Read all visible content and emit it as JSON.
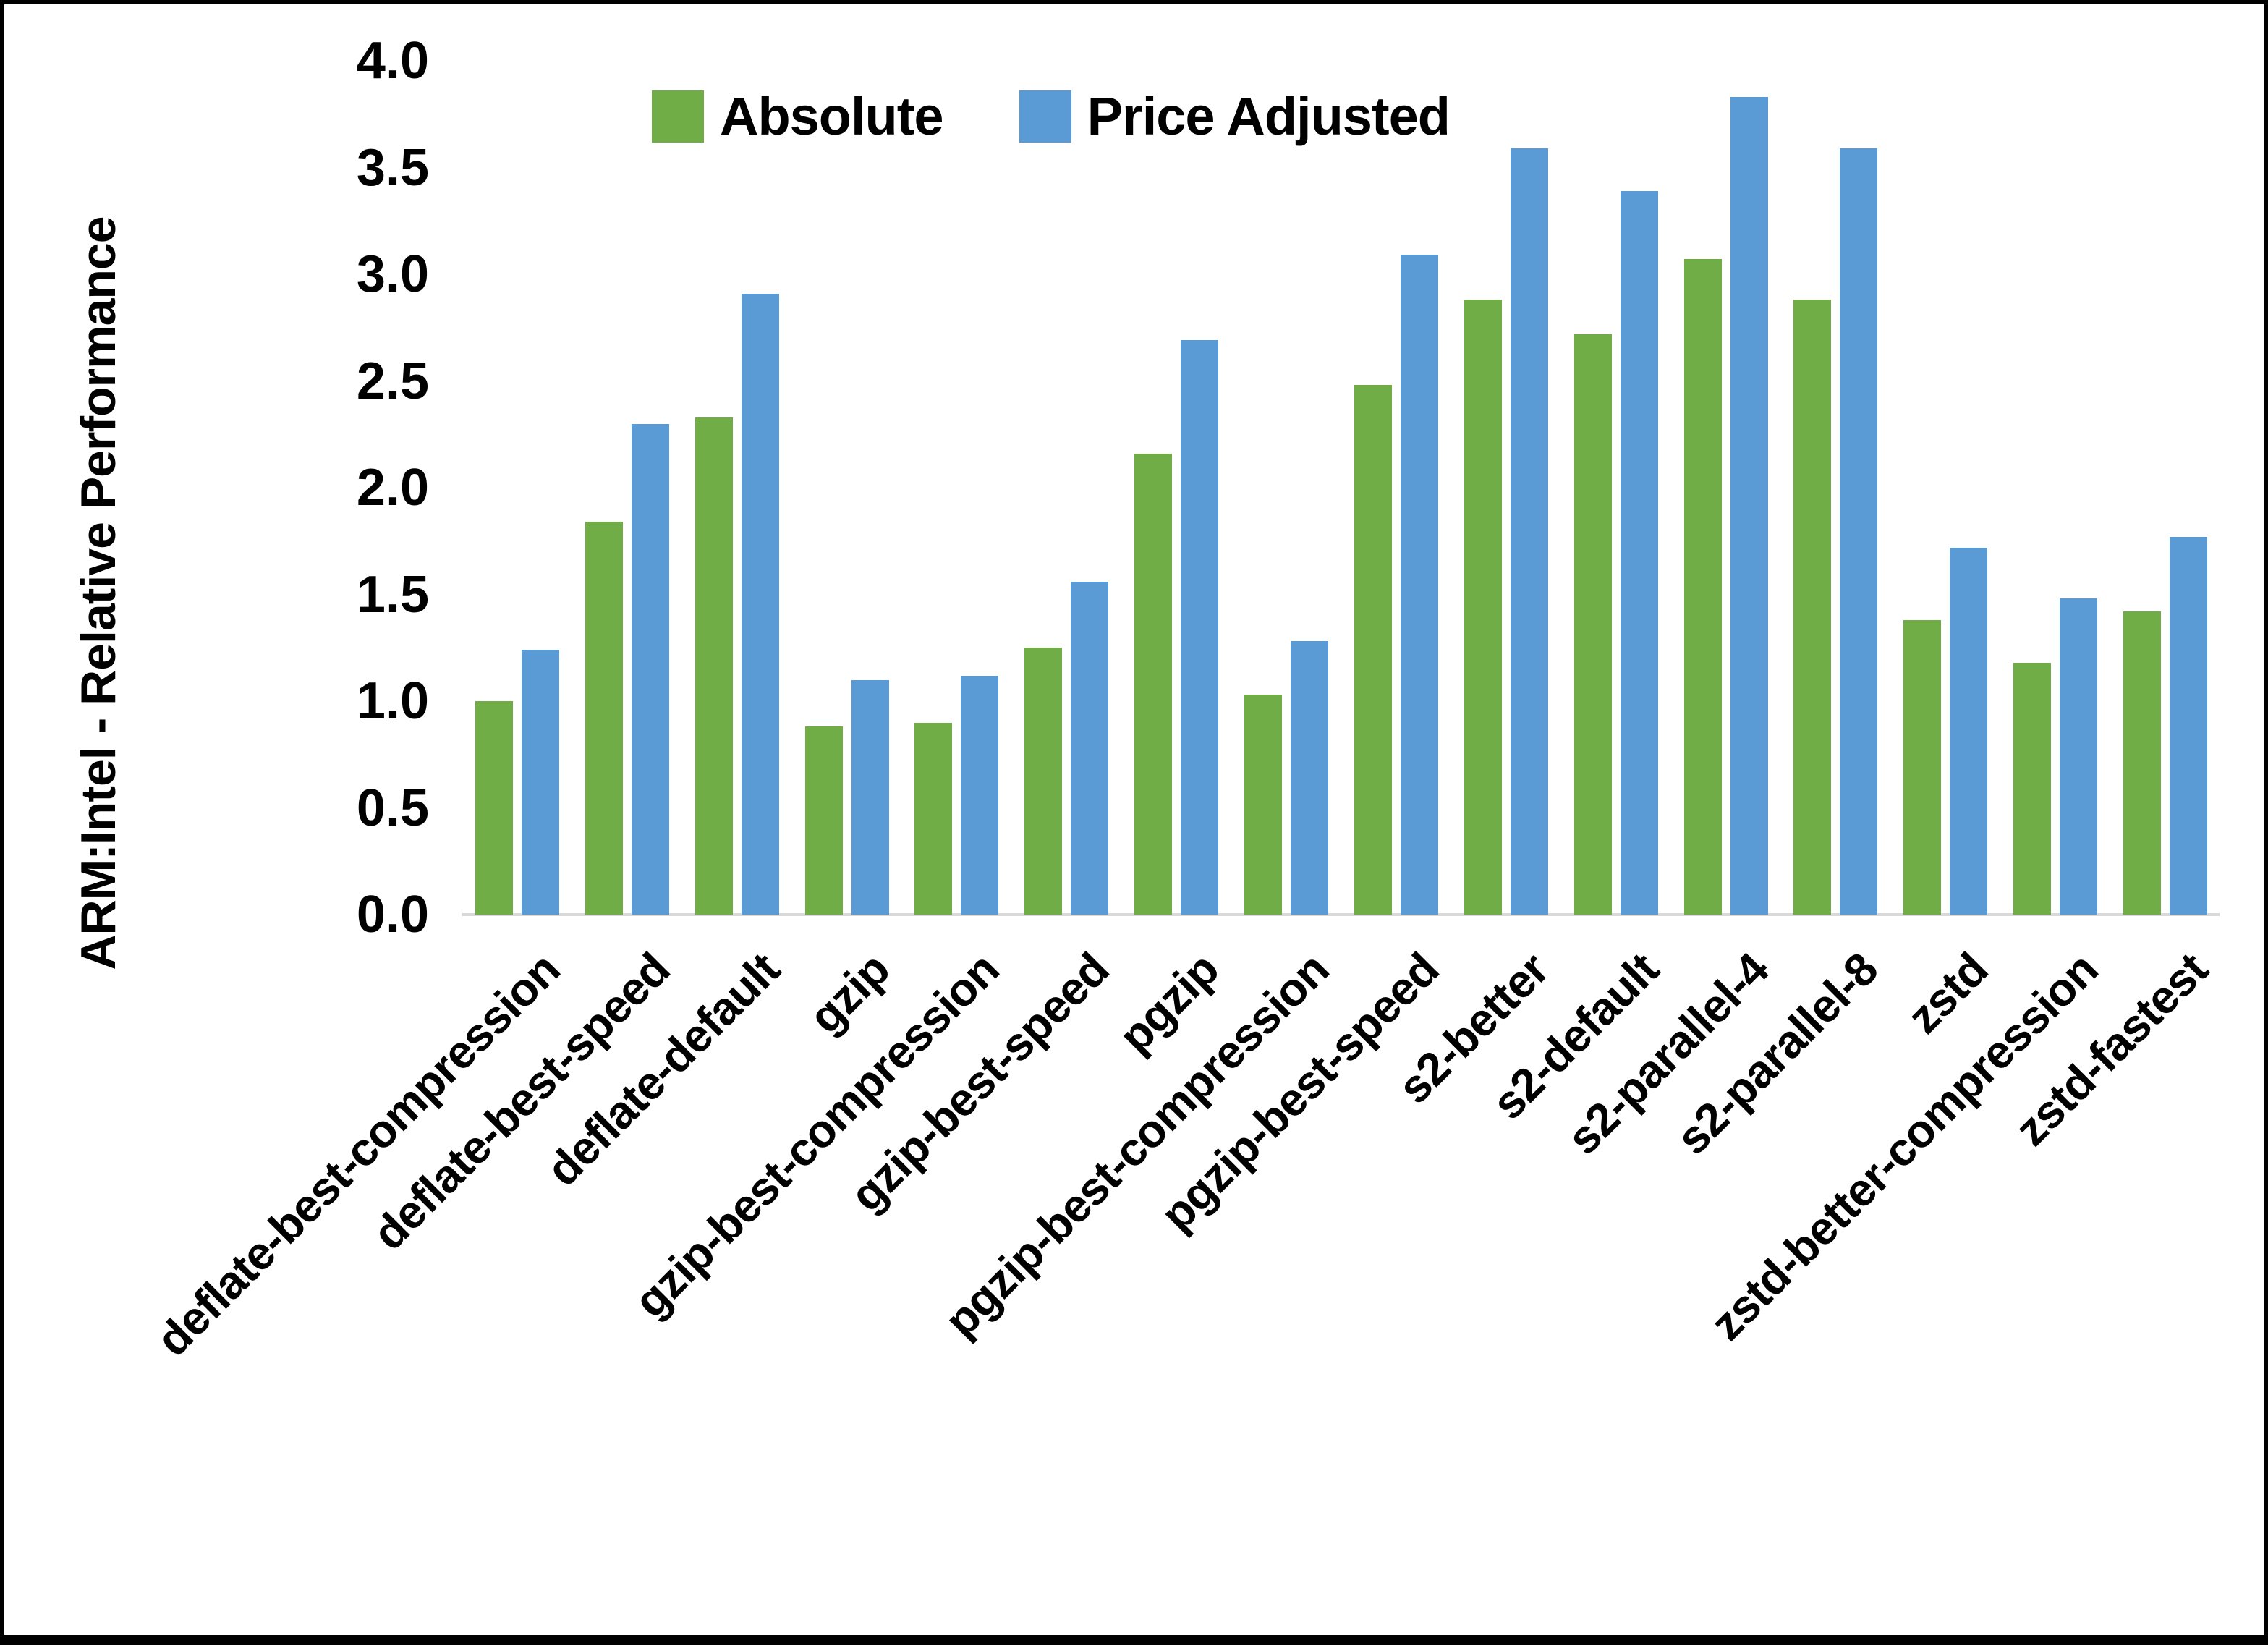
{
  "chart_data": {
    "type": "bar",
    "title": "",
    "xlabel": "",
    "ylabel": "ARM:Intel - Relative Performance",
    "ylim": [
      0.0,
      4.0
    ],
    "ytick_step": 0.5,
    "ytick_labels": [
      "0.0",
      "0.5",
      "1.0",
      "1.5",
      "2.0",
      "2.5",
      "3.0",
      "3.5",
      "4.0"
    ],
    "grid": false,
    "legend_position": "top-center",
    "axis_line_color": "#d9d9d9",
    "categories": [
      "deflate-best-compression",
      "deflate-best-speed",
      "deflate-default",
      "gzip",
      "gzip-best-compression",
      "gzip-best-speed",
      "pgzip",
      "pgzip-best-compression",
      "pgzip-best-speed",
      "s2-better",
      "s2-default",
      "s2-parallel-4",
      "s2-parallel-8",
      "zstd",
      "zstd-better-compression",
      "zstd-fastest"
    ],
    "series": [
      {
        "name": "Absolute",
        "color": "#70ad47",
        "values": [
          1.0,
          1.84,
          2.33,
          0.88,
          0.9,
          1.25,
          2.16,
          1.03,
          2.48,
          2.88,
          2.72,
          3.07,
          2.88,
          1.38,
          1.18,
          1.42
        ]
      },
      {
        "name": "Price Adjusted",
        "color": "#5b9bd5",
        "values": [
          1.24,
          2.3,
          2.91,
          1.1,
          1.12,
          1.56,
          2.69,
          1.28,
          3.09,
          3.59,
          3.39,
          3.83,
          3.59,
          1.72,
          1.48,
          1.77
        ]
      }
    ]
  }
}
